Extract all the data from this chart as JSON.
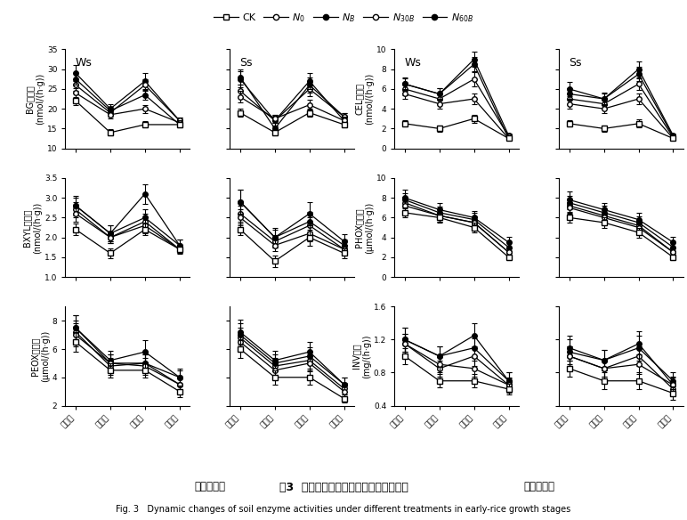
{
  "x_labels": [
    "分蘇期",
    "拔节期",
    "齐穗期",
    "成熟期"
  ],
  "x_bottom_label_left": "早稽生育期",
  "x_bottom_label_right": "早稽生育期",
  "legend_labels": [
    "CK",
    "$N_0$",
    "$N_B$",
    "$N_{30B}$",
    "$N_{60B}$"
  ],
  "marker_styles": [
    "s",
    "o",
    "o",
    "o",
    "o"
  ],
  "marker_fills": [
    "white",
    "white",
    "black",
    "white",
    "black"
  ],
  "title_main_cn": "图3  土壤酶活性随早稽生育期的动态变化",
  "title_main_en": "Fig. 3   Dynamic changes of soil enzyme activities under different treatments in early-rice growth stages",
  "BG_Ws": {
    "ylabel_cn": "BG酶活性\n(nmol/(h·g))",
    "ws_title": "Ws",
    "ylim": [
      10,
      35
    ],
    "yticks": [
      10,
      15,
      20,
      25,
      30,
      35
    ],
    "CK": [
      22.0,
      14.0,
      16.0,
      16.0
    ],
    "N0": [
      24.0,
      18.5,
      20.0,
      16.5
    ],
    "NB": [
      27.5,
      19.5,
      23.5,
      16.0
    ],
    "N30B": [
      26.0,
      19.0,
      26.0,
      17.0
    ],
    "N60B": [
      29.0,
      20.0,
      27.0,
      17.0
    ],
    "CK_err": [
      1.0,
      0.8,
      0.8,
      0.6
    ],
    "N0_err": [
      1.2,
      1.0,
      1.0,
      0.6
    ],
    "NB_err": [
      1.5,
      1.0,
      1.2,
      0.7
    ],
    "N30B_err": [
      1.5,
      1.0,
      1.5,
      0.8
    ],
    "N60B_err": [
      2.0,
      1.2,
      2.0,
      0.8
    ]
  },
  "BG_Ss": {
    "ss_title": "Ss",
    "ylim": [
      10,
      35
    ],
    "yticks": [
      10,
      15,
      20,
      25,
      30,
      35
    ],
    "CK": [
      19.0,
      14.0,
      19.0,
      16.0
    ],
    "N0": [
      23.0,
      17.5,
      21.0,
      17.0
    ],
    "NB": [
      27.5,
      17.0,
      27.0,
      17.0
    ],
    "N30B": [
      24.5,
      17.0,
      25.0,
      18.0
    ],
    "N60B": [
      28.0,
      15.0,
      26.0,
      18.0
    ],
    "CK_err": [
      1.0,
      0.8,
      1.0,
      0.7
    ],
    "N0_err": [
      1.5,
      1.0,
      1.2,
      0.8
    ],
    "NB_err": [
      2.0,
      1.5,
      2.0,
      0.9
    ],
    "N30B_err": [
      1.5,
      1.2,
      1.8,
      1.0
    ],
    "N60B_err": [
      2.0,
      1.5,
      2.0,
      1.0
    ]
  },
  "CEL_Ws": {
    "ylabel_cn": "CEL酶活性\n(nmol/(h·g))",
    "ws_title": "Ws",
    "ylim": [
      0,
      10
    ],
    "yticks": [
      0,
      2,
      4,
      6,
      8,
      10
    ],
    "CK": [
      2.5,
      2.0,
      3.0,
      1.0
    ],
    "N0": [
      5.5,
      4.5,
      5.0,
      1.0
    ],
    "NB": [
      6.5,
      5.5,
      8.5,
      1.0
    ],
    "N30B": [
      6.0,
      5.0,
      7.0,
      1.2
    ],
    "N60B": [
      6.5,
      5.5,
      9.0,
      1.3
    ],
    "CK_err": [
      0.3,
      0.3,
      0.4,
      0.1
    ],
    "N0_err": [
      0.5,
      0.5,
      0.5,
      0.1
    ],
    "NB_err": [
      0.6,
      0.6,
      0.7,
      0.15
    ],
    "N30B_err": [
      0.6,
      0.5,
      0.7,
      0.2
    ],
    "N60B_err": [
      0.7,
      0.6,
      0.8,
      0.2
    ]
  },
  "CEL_Ss": {
    "ss_title": "Ss",
    "ylim": [
      0,
      10
    ],
    "yticks": [
      0,
      2,
      4,
      6,
      8,
      10
    ],
    "CK": [
      2.5,
      2.0,
      2.5,
      1.0
    ],
    "N0": [
      4.5,
      4.0,
      5.0,
      1.0
    ],
    "NB": [
      5.5,
      5.0,
      7.5,
      1.2
    ],
    "N30B": [
      5.0,
      4.5,
      6.5,
      1.1
    ],
    "N60B": [
      6.0,
      5.0,
      8.0,
      1.3
    ],
    "CK_err": [
      0.3,
      0.3,
      0.4,
      0.1
    ],
    "N0_err": [
      0.5,
      0.4,
      0.5,
      0.15
    ],
    "NB_err": [
      0.6,
      0.5,
      0.7,
      0.2
    ],
    "N30B_err": [
      0.5,
      0.5,
      0.6,
      0.15
    ],
    "N60B_err": [
      0.7,
      0.6,
      0.8,
      0.2
    ]
  },
  "BXYL_Ws": {
    "ylabel_cn": "BXYL酶活性\n(nmol/(h·g))",
    "ylim": [
      1.0,
      3.5
    ],
    "yticks": [
      1.0,
      1.5,
      2.0,
      2.5,
      3.0,
      3.5
    ],
    "CK": [
      2.2,
      1.6,
      2.2,
      1.7
    ],
    "N0": [
      2.6,
      2.0,
      2.3,
      1.7
    ],
    "NB": [
      2.8,
      2.1,
      2.5,
      1.8
    ],
    "N30B": [
      2.7,
      2.0,
      2.4,
      1.7
    ],
    "N60B": [
      2.8,
      2.1,
      3.1,
      1.8
    ],
    "CK_err": [
      0.15,
      0.12,
      0.15,
      0.1
    ],
    "N0_err": [
      0.2,
      0.15,
      0.2,
      0.1
    ],
    "NB_err": [
      0.2,
      0.2,
      0.2,
      0.15
    ],
    "N30B_err": [
      0.2,
      0.15,
      0.2,
      0.12
    ],
    "N60B_err": [
      0.25,
      0.2,
      0.25,
      0.15
    ]
  },
  "BXYL_Ss": {
    "ylim": [
      1.0,
      3.5
    ],
    "yticks": [
      1.0,
      1.5,
      2.0,
      2.5,
      3.0,
      3.5
    ],
    "CK": [
      2.2,
      1.4,
      2.0,
      1.6
    ],
    "N0": [
      2.5,
      1.8,
      2.1,
      1.7
    ],
    "NB": [
      2.9,
      2.0,
      2.4,
      1.8
    ],
    "N30B": [
      2.6,
      1.9,
      2.3,
      1.7
    ],
    "N60B": [
      2.9,
      2.0,
      2.6,
      1.9
    ],
    "CK_err": [
      0.15,
      0.15,
      0.2,
      0.12
    ],
    "N0_err": [
      0.2,
      0.15,
      0.2,
      0.12
    ],
    "NB_err": [
      0.3,
      0.2,
      0.25,
      0.15
    ],
    "N30B_err": [
      0.2,
      0.15,
      0.2,
      0.12
    ],
    "N60B_err": [
      0.3,
      0.25,
      0.3,
      0.18
    ]
  },
  "PHOX_Ws": {
    "ylabel_cn": "PHOX酶活性\n(μmol/(h·g))",
    "ylim": [
      0,
      10
    ],
    "yticks": [
      0,
      2,
      4,
      6,
      8,
      10
    ],
    "CK": [
      6.5,
      6.0,
      5.0,
      2.0
    ],
    "N0": [
      7.2,
      6.2,
      5.5,
      2.5
    ],
    "NB": [
      7.8,
      6.5,
      5.8,
      3.0
    ],
    "N30B": [
      7.5,
      6.2,
      5.5,
      2.5
    ],
    "N60B": [
      8.0,
      6.8,
      6.0,
      3.5
    ],
    "CK_err": [
      0.5,
      0.5,
      0.5,
      0.3
    ],
    "N0_err": [
      0.6,
      0.6,
      0.6,
      0.4
    ],
    "NB_err": [
      0.7,
      0.6,
      0.7,
      0.5
    ],
    "N30B_err": [
      0.6,
      0.6,
      0.6,
      0.4
    ],
    "N60B_err": [
      0.8,
      0.7,
      0.7,
      0.6
    ]
  },
  "PHOX_Ss": {
    "ylim": [
      0,
      10
    ],
    "yticks": [
      0,
      2,
      4,
      6,
      8,
      10
    ],
    "CK": [
      6.0,
      5.5,
      4.5,
      2.0
    ],
    "N0": [
      7.0,
      6.0,
      5.0,
      2.5
    ],
    "NB": [
      7.5,
      6.5,
      5.5,
      3.0
    ],
    "N30B": [
      7.2,
      6.2,
      5.2,
      2.5
    ],
    "N60B": [
      7.8,
      6.8,
      5.8,
      3.5
    ],
    "CK_err": [
      0.5,
      0.5,
      0.5,
      0.3
    ],
    "N0_err": [
      0.6,
      0.5,
      0.5,
      0.4
    ],
    "NB_err": [
      0.7,
      0.7,
      0.6,
      0.5
    ],
    "N30B_err": [
      0.6,
      0.6,
      0.5,
      0.4
    ],
    "N60B_err": [
      0.8,
      0.7,
      0.7,
      0.6
    ]
  },
  "PEOX_Ws": {
    "ylabel_cn": "PEOX酶活性\n(μmol/(h·g))",
    "ylim": [
      2,
      9
    ],
    "yticks": [
      2,
      4,
      6,
      8
    ],
    "CK": [
      6.5,
      4.5,
      4.5,
      3.0
    ],
    "N0": [
      7.0,
      5.0,
      4.8,
      3.5
    ],
    "NB": [
      7.5,
      5.0,
      5.0,
      4.0
    ],
    "N30B": [
      7.2,
      4.8,
      5.0,
      3.5
    ],
    "N60B": [
      7.5,
      5.2,
      5.8,
      4.0
    ],
    "CK_err": [
      0.7,
      0.5,
      0.5,
      0.4
    ],
    "N0_err": [
      0.8,
      0.6,
      0.6,
      0.5
    ],
    "NB_err": [
      0.9,
      0.6,
      0.6,
      0.5
    ],
    "N30B_err": [
      0.8,
      0.6,
      0.6,
      0.5
    ],
    "N60B_err": [
      0.9,
      0.7,
      0.8,
      0.6
    ]
  },
  "PEOX_Ss": {
    "ylim": [
      2,
      9
    ],
    "yticks": [
      2,
      4,
      6,
      8
    ],
    "CK": [
      6.0,
      4.0,
      4.0,
      2.5
    ],
    "N0": [
      6.5,
      4.5,
      5.0,
      3.0
    ],
    "NB": [
      7.0,
      5.0,
      5.5,
      3.5
    ],
    "N30B": [
      6.8,
      4.8,
      5.2,
      3.2
    ],
    "N60B": [
      7.2,
      5.2,
      5.8,
      3.5
    ],
    "CK_err": [
      0.6,
      0.5,
      0.5,
      0.3
    ],
    "N0_err": [
      0.7,
      0.5,
      0.6,
      0.4
    ],
    "NB_err": [
      0.8,
      0.6,
      0.6,
      0.5
    ],
    "N30B_err": [
      0.7,
      0.6,
      0.6,
      0.4
    ],
    "N60B_err": [
      0.9,
      0.7,
      0.7,
      0.5
    ]
  },
  "INV_Ws": {
    "ylabel_cn": "INV活性\n(mg/(h·g))",
    "ylim": [
      0.4,
      1.6
    ],
    "yticks": [
      0.4,
      0.8,
      1.2,
      1.6
    ],
    "CK": [
      1.0,
      0.7,
      0.7,
      0.6
    ],
    "N0": [
      1.15,
      0.9,
      0.85,
      0.65
    ],
    "NB": [
      1.2,
      1.0,
      1.25,
      0.7
    ],
    "N30B": [
      1.15,
      0.85,
      1.0,
      0.65
    ],
    "N60B": [
      1.2,
      1.0,
      1.1,
      0.7
    ],
    "CK_err": [
      0.1,
      0.08,
      0.08,
      0.07
    ],
    "N0_err": [
      0.12,
      0.1,
      0.1,
      0.08
    ],
    "NB_err": [
      0.15,
      0.12,
      0.15,
      0.1
    ],
    "N30B_err": [
      0.12,
      0.1,
      0.12,
      0.09
    ],
    "N60B_err": [
      0.15,
      0.12,
      0.12,
      0.1
    ]
  },
  "INV_Ss": {
    "ylim": [
      0.4,
      1.6
    ],
    "yticks": [
      0.4,
      0.8,
      1.2,
      1.6
    ],
    "CK": [
      0.85,
      0.7,
      0.7,
      0.55
    ],
    "N0": [
      1.0,
      0.85,
      0.9,
      0.65
    ],
    "NB": [
      1.05,
      0.95,
      1.1,
      0.7
    ],
    "N30B": [
      1.0,
      0.85,
      1.0,
      0.6
    ],
    "N60B": [
      1.1,
      0.95,
      1.15,
      0.65
    ],
    "CK_err": [
      0.1,
      0.1,
      0.1,
      0.08
    ],
    "N0_err": [
      0.12,
      0.1,
      0.12,
      0.09
    ],
    "NB_err": [
      0.15,
      0.12,
      0.15,
      0.1
    ],
    "N30B_err": [
      0.12,
      0.1,
      0.12,
      0.08
    ],
    "N60B_err": [
      0.15,
      0.12,
      0.15,
      0.1
    ]
  }
}
